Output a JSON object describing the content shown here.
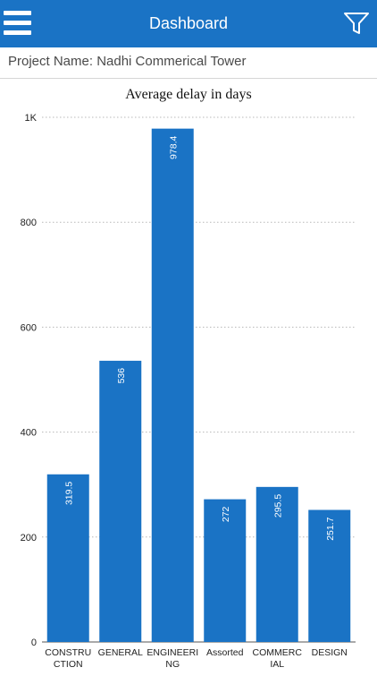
{
  "header": {
    "title": "Dashboard",
    "menu_icon": "hamburger-menu-icon",
    "filter_icon": "filter-funnel-icon",
    "color": "#1a73c5"
  },
  "project": {
    "label": "Project Name: Nadhi Commerical Tower"
  },
  "chart_data": {
    "type": "bar",
    "title": "Average delay in days",
    "categories": [
      [
        "CONSTRU",
        "CTION"
      ],
      [
        "GENERAL"
      ],
      [
        "ENGINEERI",
        "NG"
      ],
      [
        "Assorted"
      ],
      [
        "COMMERC",
        "IAL"
      ],
      [
        "DESIGN"
      ]
    ],
    "values": [
      319.5,
      536,
      978.4,
      272,
      295.5,
      251.7
    ],
    "value_labels": [
      "319.5",
      "536",
      "978.4",
      "272",
      "295.5",
      "251.7"
    ],
    "ylim": [
      0,
      1000
    ],
    "yticks": [
      {
        "value": 0,
        "label": "0"
      },
      {
        "value": 200,
        "label": "200"
      },
      {
        "value": 400,
        "label": "400"
      },
      {
        "value": 600,
        "label": "600"
      },
      {
        "value": 800,
        "label": "800"
      },
      {
        "value": 1000,
        "label": "1K"
      }
    ],
    "grid": true,
    "bar_color": "#1a73c5"
  }
}
